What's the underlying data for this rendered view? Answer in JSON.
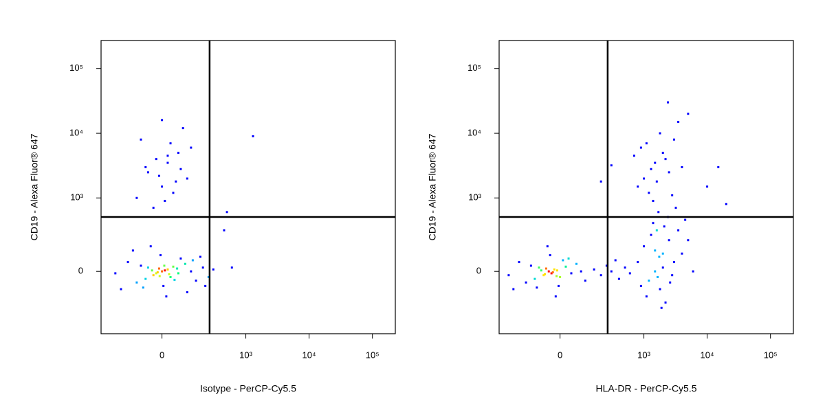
{
  "chart_data": [
    {
      "type": "scatter",
      "x_label": "Isotype - PerCP-Cy5.5",
      "y_label": "CD19 - Alexa Fluor® 647",
      "xlim": [
        -430,
        230000
      ],
      "ylim": [
        -670,
        270000
      ],
      "xticks": [
        0,
        {
          "value": 1000,
          "label": "10³"
        },
        {
          "value": 10000,
          "label": "10⁴"
        },
        {
          "value": 100000,
          "label": "10⁵"
        }
      ],
      "yticks": [
        0,
        {
          "value": 1000,
          "label": "10³"
        },
        {
          "value": 10000,
          "label": "10⁴"
        },
        {
          "value": 100000,
          "label": "10⁵"
        }
      ],
      "quadrant": [
        260,
        500
      ],
      "color": "#0000ff",
      "x": [
        -20,
        10,
        -50,
        30,
        0,
        -10,
        20,
        -30,
        40,
        -60,
        60,
        -80,
        90,
        -100,
        120,
        150,
        -150,
        200,
        250,
        -200,
        5,
        -5,
        70,
        -70,
        100,
        180,
        220,
        -120,
        -250,
        15,
        -40,
        130,
        300,
        -15,
        25,
        -35,
        45,
        8,
        -8,
        55,
        -50,
        20,
        0,
        60,
        -80,
        40,
        100,
        -20,
        10,
        80,
        -60,
        30,
        -10,
        50,
        120,
        -100,
        0,
        70,
        -30,
        20,
        1300,
        500,
        450,
        600
      ],
      "values": [
        -10,
        5,
        20,
        -30,
        0,
        15,
        10,
        -20,
        25,
        -40,
        -10,
        30,
        40,
        -60,
        0,
        -50,
        50,
        20,
        -30,
        -100,
        -80,
        90,
        70,
        -90,
        -120,
        80,
        -80,
        120,
        -10,
        -150,
        150,
        60,
        10,
        -5,
        -15,
        5,
        -45,
        30,
        -25,
        15,
        2500,
        3500,
        1500,
        5000,
        8000,
        1200,
        2000,
        4000,
        900,
        12000,
        3000,
        7000,
        2200,
        1800,
        6000,
        1000,
        16000,
        2800,
        700,
        4500,
        9000,
        600,
        300,
        20
      ]
    },
    {
      "type": "scatter",
      "x_label": "HLA-DR - PerCP-Cy5.5",
      "y_label": "CD19 - Alexa Fluor® 647",
      "xlim": [
        -430,
        230000
      ],
      "ylim": [
        -670,
        270000
      ],
      "xticks": [
        0,
        {
          "value": 1000,
          "label": "10³"
        },
        {
          "value": 10000,
          "label": "10⁴"
        },
        {
          "value": 100000,
          "label": "10⁵"
        }
      ],
      "yticks": [
        0,
        {
          "value": 1000,
          "label": "10³"
        },
        {
          "value": 10000,
          "label": "10⁴"
        },
        {
          "value": 100000,
          "label": "10⁵"
        }
      ],
      "quadrant": [
        260,
        500
      ],
      "color": "#0000ff",
      "x": [
        -30,
        -10,
        -80,
        0,
        -40,
        -50,
        -20,
        -60,
        20,
        -100,
        40,
        -120,
        60,
        -150,
        80,
        -200,
        -250,
        -5,
        -35,
        30,
        -90,
        -300,
        100,
        -15,
        -45,
        10,
        -25,
        -55,
        -70,
        -12,
        150,
        200,
        250,
        300,
        400,
        500,
        350,
        600,
        1500,
        2000,
        1200,
        2500,
        1800,
        3000,
        1000,
        1600,
        2200,
        4000,
        1400,
        2800,
        900,
        3500,
        1700,
        2000,
        5000,
        1300,
        2400,
        1100,
        6000,
        1900,
        3200,
        800,
        1500,
        2600,
        1750,
        4500,
        2100,
        1650,
        1000,
        1500,
        2000,
        800,
        3000,
        1200,
        2500,
        1800,
        4000,
        900,
        1600,
        2200,
        3500,
        1300,
        700,
        2800,
        1100,
        5000,
        1400,
        2400,
        10000,
        20000,
        15000,
        200,
        300
      ],
      "values": [
        -10,
        5,
        20,
        -30,
        0,
        15,
        10,
        -20,
        25,
        -40,
        -10,
        30,
        40,
        -60,
        0,
        50,
        -100,
        -80,
        90,
        70,
        -90,
        -20,
        -50,
        -150,
        150,
        60,
        -5,
        -15,
        5,
        -25,
        10,
        -20,
        30,
        0,
        -40,
        20,
        60,
        -10,
        0,
        100,
        -50,
        200,
        -100,
        50,
        150,
        300,
        -200,
        100,
        400,
        -20,
        -80,
        300,
        600,
        20,
        200,
        250,
        500,
        -150,
        0,
        -250,
        700,
        50,
        120,
        -60,
        80,
        450,
        350,
        -30,
        2000,
        3500,
        5000,
        1500,
        8000,
        1200,
        2500,
        10000,
        3000,
        6000,
        1800,
        4000,
        15000,
        2800,
        4500,
        1100,
        7000,
        20000,
        900,
        30000,
        1500,
        800,
        3000,
        1800,
        3200
      ]
    }
  ]
}
